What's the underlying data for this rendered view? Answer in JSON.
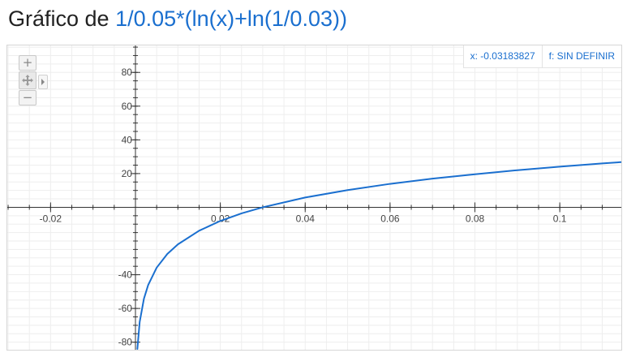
{
  "header": {
    "prefix": "Gráfico de",
    "function": "1/0.05*(ln(x)+ln(1/0.03))"
  },
  "readout": {
    "x": "x: -0.03183827",
    "f": "f: SIN DEFINIR"
  },
  "controls": {
    "zoom_in": "+",
    "zoom_out": "−"
  },
  "colors": {
    "curve": "#1a6fcf",
    "axis": "#333333",
    "grid": "#eeeeee"
  },
  "chart_data": {
    "type": "line",
    "title": "",
    "xlabel": "",
    "ylabel": "",
    "xlim": [
      -0.0302,
      0.1145
    ],
    "ylim": [
      -84.5,
      96
    ],
    "x_ticks": [
      -0.02,
      0.02,
      0.04,
      0.06,
      0.08,
      0.1
    ],
    "x_tick_labels": [
      "-0.02",
      "0.02",
      "0.04",
      "0.06",
      "0.08",
      "0.1"
    ],
    "y_ticks": [
      80,
      60,
      40,
      20,
      -40,
      -60,
      -80
    ],
    "y_tick_labels": [
      "80",
      "60",
      "40",
      "20",
      "-40",
      "-60",
      "-80"
    ],
    "grid": true,
    "series": [
      {
        "expression": "1/0.05*(ln(x)+ln(1/0.03))",
        "x": [
          0.00045,
          0.001,
          0.002,
          0.003,
          0.005,
          0.0075,
          0.01,
          0.015,
          0.02,
          0.025,
          0.03,
          0.04,
          0.05,
          0.06,
          0.07,
          0.08,
          0.09,
          0.1,
          0.11,
          0.1145
        ],
        "y": [
          -84.0,
          -68.0,
          -54.2,
          -46.1,
          -35.8,
          -27.7,
          -22.0,
          -13.9,
          -8.1,
          -3.6,
          0.0,
          5.8,
          10.2,
          13.9,
          17.0,
          19.6,
          22.0,
          24.1,
          26.0,
          26.8
        ]
      }
    ]
  }
}
